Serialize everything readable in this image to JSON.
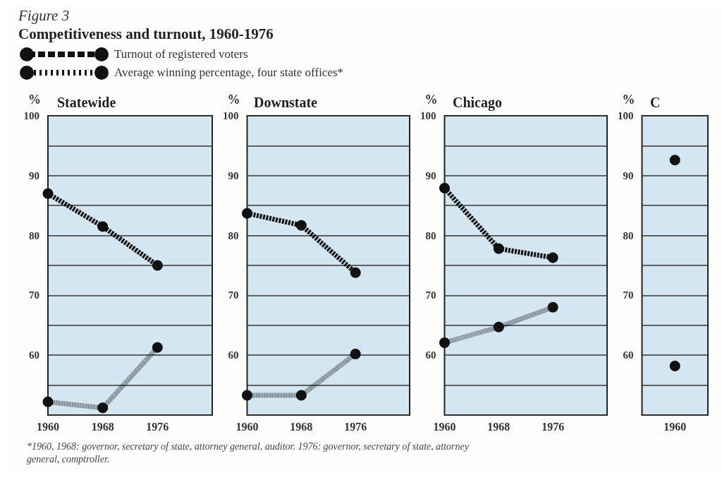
{
  "chart_data": [
    {
      "type": "line",
      "title": "Statewide",
      "ylabel": "%",
      "x": [
        1960,
        1968,
        1976
      ],
      "xlim": [
        1960,
        1984
      ],
      "xticks": [
        1960,
        1968,
        1976
      ],
      "ylim": [
        50,
        100
      ],
      "yticks": [
        {
          "value": 50,
          "label": null
        },
        {
          "value": 55,
          "label": null
        },
        60,
        {
          "value": 65,
          "label": null
        },
        70,
        {
          "value": 75,
          "label": null
        },
        80,
        {
          "value": 85,
          "label": null
        },
        90,
        {
          "value": 95,
          "label": null
        },
        100
      ],
      "grid": "y",
      "marker": "circle",
      "legend": "top",
      "subtitle": "Competitiveness and turnout, 1960-1976",
      "annotations": [
        "Figure 3",
        "*1960, 1968: governor, secretary of state, attorney general, auditor. 1976: governor, secretary of state, attorney general, comptroller."
      ],
      "series": [
        {
          "name": "Turnout of registered voters",
          "color": "#111111",
          "line_style": "dashed",
          "values": [
            87,
            81.5,
            75
          ]
        },
        {
          "name": "Average winning percentage, four state offices*",
          "color": "#111111",
          "line_style": "dotted",
          "values": [
            52.2,
            51.2,
            61.3
          ]
        }
      ]
    },
    {
      "type": "line",
      "title": "Downstate",
      "ylabel": "%",
      "x": [
        1960,
        1968,
        1976
      ],
      "xlim": [
        1960,
        1984
      ],
      "xticks": [
        1960,
        1968,
        1976
      ],
      "ylim": [
        50,
        100
      ],
      "yticks": [
        {
          "value": 50,
          "label": null
        },
        {
          "value": 55,
          "label": null
        },
        60,
        {
          "value": 65,
          "label": null
        },
        70,
        {
          "value": 75,
          "label": null
        },
        80,
        {
          "value": 85,
          "label": null
        },
        90,
        {
          "value": 95,
          "label": null
        },
        100
      ],
      "grid": "y",
      "marker": "circle",
      "series": [
        {
          "color": "#111111",
          "line_style": "dashed",
          "values": [
            83.7,
            81.7,
            73.8
          ]
        },
        {
          "color": "#111111",
          "line_style": "dotted",
          "values": [
            53.3,
            53.3,
            60.2
          ]
        }
      ]
    },
    {
      "type": "line",
      "title": "Chicago",
      "ylabel": "%",
      "x": [
        1960,
        1968,
        1976
      ],
      "xlim": [
        1960,
        1984
      ],
      "xticks": [
        1960,
        1968,
        1976
      ],
      "ylim": [
        50,
        100
      ],
      "yticks": [
        {
          "value": 50,
          "label": null
        },
        {
          "value": 55,
          "label": null
        },
        60,
        {
          "value": 65,
          "label": null
        },
        70,
        {
          "value": 75,
          "label": null
        },
        80,
        {
          "value": 85,
          "label": null
        },
        90,
        {
          "value": 95,
          "label": null
        },
        100
      ],
      "grid": "y",
      "marker": "circle",
      "series": [
        {
          "color": "#111111",
          "line_style": "dashed",
          "values": [
            87.9,
            77.8,
            76.3
          ]
        },
        {
          "color": "#111111",
          "line_style": "dotted",
          "values": [
            62.1,
            64.7,
            68
          ]
        }
      ]
    },
    {
      "type": "line",
      "title": "C",
      "ylabel": "%",
      "categories": [
        "1960"
      ],
      "ylim": [
        50,
        100
      ],
      "yticks": [
        {
          "value": 50,
          "label": null
        },
        {
          "value": 55,
          "label": null
        },
        60,
        {
          "value": 65,
          "label": null
        },
        70,
        {
          "value": 75,
          "label": null
        },
        80,
        {
          "value": 85,
          "label": null
        },
        90,
        {
          "value": 95,
          "label": null
        },
        100
      ],
      "grid": "y",
      "marker": "circle",
      "series": [
        {
          "color": "#111111",
          "line_style": "dashed",
          "values": [
            92.6
          ]
        },
        {
          "color": "#111111",
          "line_style": "dotted",
          "values": [
            58.2
          ]
        }
      ]
    }
  ]
}
